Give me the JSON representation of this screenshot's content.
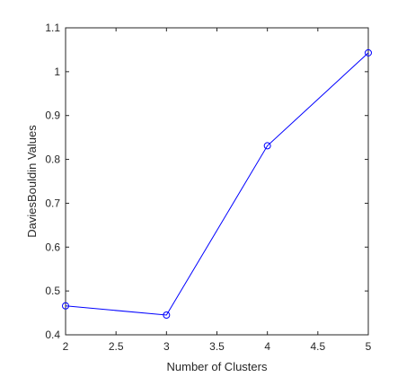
{
  "chart_data": {
    "type": "line",
    "title": "",
    "xlabel": "Number of Clusters",
    "ylabel": "DaviesBouldin Values",
    "xlim": [
      2,
      5
    ],
    "ylim": [
      0.4,
      1.1
    ],
    "xticks": [
      2,
      2.5,
      3,
      3.5,
      4,
      4.5,
      5
    ],
    "xtick_labels": [
      "2",
      "2.5",
      "3",
      "3.5",
      "4",
      "4.5",
      "5"
    ],
    "yticks": [
      0.4,
      0.5,
      0.6,
      0.7,
      0.8,
      0.9,
      1.0,
      1.1
    ],
    "ytick_labels": [
      "0.4",
      "0.5",
      "0.6",
      "0.7",
      "0.8",
      "0.9",
      "1",
      "1.1"
    ],
    "grid": false,
    "series": [
      {
        "x": [
          2,
          3,
          4,
          5
        ],
        "values": [
          0.466,
          0.445,
          0.831,
          1.043
        ],
        "color": "#0000ff",
        "marker": "circle"
      }
    ],
    "axis_color": "#262626"
  }
}
